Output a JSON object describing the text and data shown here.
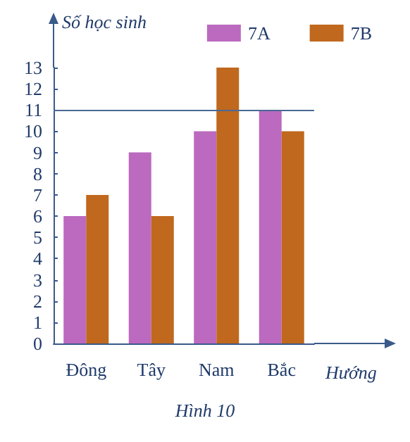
{
  "chart_data": {
    "type": "bar",
    "ylabel": "Số học sinh",
    "xlabel": "Hướng",
    "annotations": [
      "Hình 10"
    ],
    "categories": [
      "Đông",
      "Tây",
      "Nam",
      "Bắc"
    ],
    "series": [
      {
        "name": "7A",
        "color": "#bb6abf",
        "values": [
          6,
          9,
          10,
          11
        ]
      },
      {
        "name": "7B",
        "color": "#c0681e",
        "values": [
          7,
          6,
          13,
          10
        ]
      }
    ],
    "ylim": [
      0,
      13
    ],
    "yticks": [
      0,
      1,
      2,
      3,
      4,
      5,
      6,
      7,
      8,
      9,
      10,
      11,
      12,
      13
    ],
    "ref_lines": [
      {
        "axis": "y",
        "value": 11,
        "color": "#4a6a96"
      }
    ],
    "grid": false,
    "legend": "top right"
  }
}
